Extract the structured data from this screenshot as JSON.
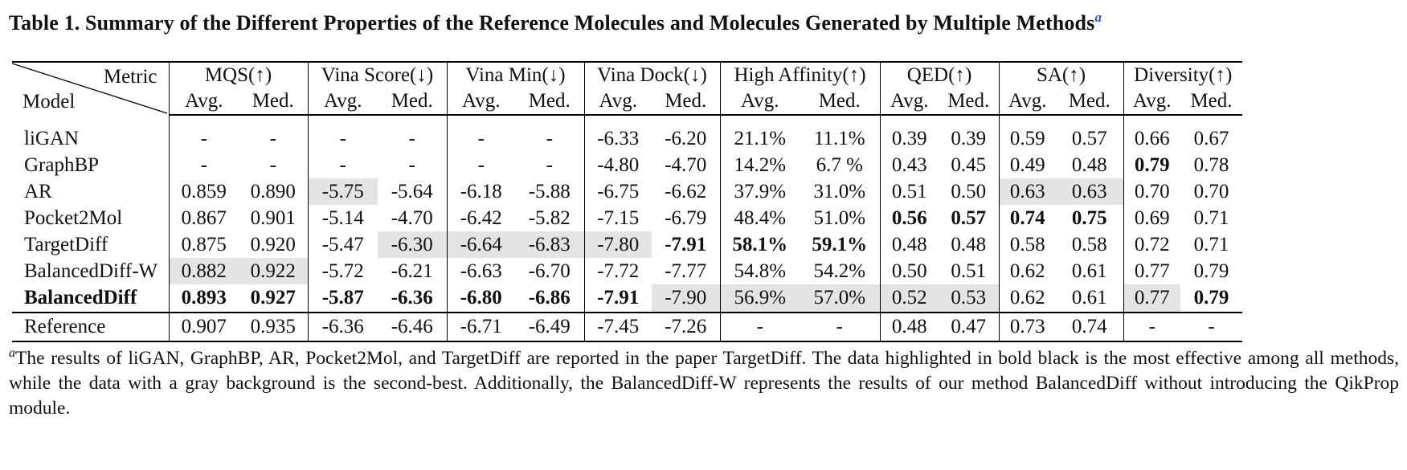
{
  "caption": {
    "text": "Table 1. Summary of the Different Properties of the Reference Molecules and Molecules Generated by Multiple Methods",
    "mark": "a"
  },
  "table": {
    "corner_metric": "Metric",
    "corner_model": "Model",
    "metrics": [
      "MQS(↑)",
      "Vina Score(↓)",
      "Vina Min(↓)",
      "Vina Dock(↓)",
      "High Affinity(↑)",
      "QED(↑)",
      "SA(↑)",
      "Diversity(↑)"
    ],
    "sub_avg": "Avg.",
    "sub_med": "Med.",
    "rows": [
      {
        "model": "liGAN",
        "cells": [
          "-",
          "-",
          "-",
          "-",
          "-",
          "-",
          "-6.33",
          "-6.20",
          "21.1%",
          "11.1%",
          "0.39",
          "0.39",
          "0.59",
          "0.57",
          "0.66",
          "0.67"
        ]
      },
      {
        "model": "GraphBP",
        "cells": [
          "-",
          "-",
          "-",
          "-",
          "-",
          "-",
          "-4.80",
          "-4.70",
          "14.2%",
          "6.7 %",
          "0.43",
          "0.45",
          "0.49",
          "0.48",
          "0.79",
          "0.78"
        ]
      },
      {
        "model": "AR",
        "cells": [
          "0.859",
          "0.890",
          "-5.75",
          "-5.64",
          "-6.18",
          "-5.88",
          "-6.75",
          "-6.62",
          "37.9%",
          "31.0%",
          "0.51",
          "0.50",
          "0.63",
          "0.63",
          "0.70",
          "0.70"
        ]
      },
      {
        "model": "Pocket2Mol",
        "cells": [
          "0.867",
          "0.901",
          "-5.14",
          "-4.70",
          "-6.42",
          "-5.82",
          "-7.15",
          "-6.79",
          "48.4%",
          "51.0%",
          "0.56",
          "0.57",
          "0.74",
          "0.75",
          "0.69",
          "0.71"
        ]
      },
      {
        "model": "TargetDiff",
        "cells": [
          "0.875",
          "0.920",
          "-5.47",
          "-6.30",
          "-6.64",
          "-6.83",
          "-7.80",
          "-7.91",
          "58.1%",
          "59.1%",
          "0.48",
          "0.48",
          "0.58",
          "0.58",
          "0.72",
          "0.71"
        ]
      },
      {
        "model": "BalancedDiff-W",
        "cells": [
          "0.882",
          "0.922",
          "-5.72",
          "-6.21",
          "-6.63",
          "-6.70",
          "-7.72",
          "-7.77",
          "54.8%",
          "54.2%",
          "0.50",
          "0.51",
          "0.62",
          "0.61",
          "0.77",
          "0.79"
        ]
      },
      {
        "model": "BalancedDiff",
        "cells": [
          "0.893",
          "0.927",
          "-5.87",
          "-6.36",
          "-6.80",
          "-6.86",
          "-7.91",
          "-7.90",
          "56.9%",
          "57.0%",
          "0.52",
          "0.53",
          "0.62",
          "0.61",
          "0.77",
          "0.79"
        ]
      }
    ],
    "reference": {
      "model": "Reference",
      "cells": [
        "0.907",
        "0.935",
        "-6.36",
        "-6.46",
        "-6.71",
        "-6.49",
        "-7.45",
        "-7.26",
        "-",
        "-",
        "0.48",
        "0.47",
        "0.73",
        "0.74",
        "-",
        "-"
      ]
    }
  },
  "footnote": {
    "mark": "a",
    "text": "The results of liGAN, GraphBP, AR, Pocket2Mol, and TargetDiff are reported in the paper TargetDiff. The data highlighted in bold black is the most effective among all methods, while the data with a gray background is the second-best. Additionally, the BalancedDiff-W represents the results of our method BalancedDiff without introducing the QikProp module."
  }
}
